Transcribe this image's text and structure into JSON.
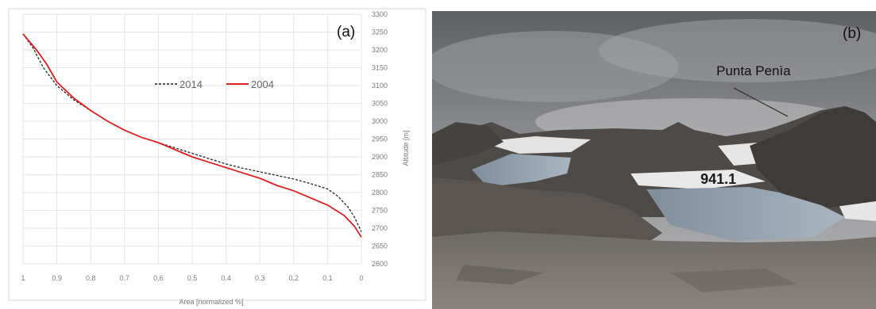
{
  "chart_data": {
    "type": "line",
    "tag": "(a)",
    "xlabel": "Area [normalized %]",
    "ylabel": "Altitude [m]",
    "xlim": [
      1,
      0
    ],
    "ylim": [
      2600,
      3300
    ],
    "x_ticks": [
      "1",
      "0.9",
      "0.8",
      "0.7",
      "0.6",
      "0.5",
      "0.4",
      "0.3",
      "0.2",
      "0.1",
      "0"
    ],
    "y_ticks": [
      "2600",
      "2650",
      "2700",
      "2750",
      "2800",
      "2850",
      "2900",
      "2950",
      "3000",
      "3050",
      "3100",
      "3150",
      "3200",
      "3250",
      "3300"
    ],
    "y_axis_side": "right",
    "grid": true,
    "legend_placement": "upper-middle",
    "series": [
      {
        "name": "2014",
        "style": "dashed",
        "color": "#222222",
        "points": [
          [
            1.0,
            3245
          ],
          [
            0.97,
            3205
          ],
          [
            0.94,
            3150
          ],
          [
            0.9,
            3100
          ],
          [
            0.85,
            3060
          ],
          [
            0.8,
            3030
          ],
          [
            0.75,
            3000
          ],
          [
            0.7,
            2975
          ],
          [
            0.65,
            2955
          ],
          [
            0.6,
            2940
          ],
          [
            0.55,
            2925
          ],
          [
            0.5,
            2910
          ],
          [
            0.45,
            2895
          ],
          [
            0.4,
            2880
          ],
          [
            0.35,
            2868
          ],
          [
            0.3,
            2858
          ],
          [
            0.25,
            2848
          ],
          [
            0.2,
            2838
          ],
          [
            0.15,
            2825
          ],
          [
            0.1,
            2810
          ],
          [
            0.07,
            2790
          ],
          [
            0.04,
            2760
          ],
          [
            0.02,
            2730
          ],
          [
            0.0,
            2690
          ]
        ]
      },
      {
        "name": "2004",
        "style": "solid",
        "color": "#e02020",
        "points": [
          [
            1.0,
            3245
          ],
          [
            0.96,
            3200
          ],
          [
            0.93,
            3160
          ],
          [
            0.9,
            3110
          ],
          [
            0.85,
            3065
          ],
          [
            0.8,
            3030
          ],
          [
            0.75,
            3000
          ],
          [
            0.7,
            2975
          ],
          [
            0.65,
            2955
          ],
          [
            0.6,
            2940
          ],
          [
            0.55,
            2920
          ],
          [
            0.5,
            2900
          ],
          [
            0.45,
            2885
          ],
          [
            0.4,
            2870
          ],
          [
            0.35,
            2855
          ],
          [
            0.3,
            2840
          ],
          [
            0.25,
            2820
          ],
          [
            0.2,
            2805
          ],
          [
            0.15,
            2785
          ],
          [
            0.1,
            2765
          ],
          [
            0.05,
            2735
          ],
          [
            0.02,
            2705
          ],
          [
            0.0,
            2675
          ]
        ]
      }
    ]
  },
  "photo": {
    "tag": "(b)",
    "peak_label": "Punta Penìa",
    "number_label": "941.1"
  },
  "colors": {
    "grid": "#e6e6e6",
    "frame": "#d9d9d9",
    "series_2014": "#222222",
    "series_2004": "#e02020"
  }
}
